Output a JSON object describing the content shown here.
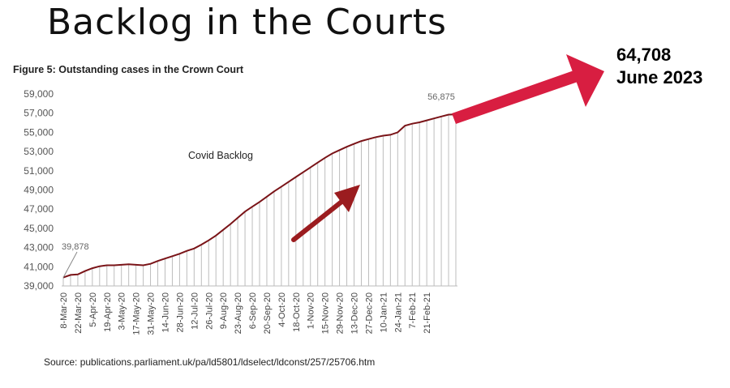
{
  "headline": "Backlog in the Courts",
  "callout": {
    "value": "64,708",
    "date": "June 2023"
  },
  "colors": {
    "line": "#7a1418",
    "bars": "#bdbdbd",
    "callout_arrow": "#d81e41",
    "inner_arrow": "#9b1c1f"
  },
  "icons": {
    "callout_arrow": "arrow-up-right-icon",
    "inner_arrow": "arrow-up-right-icon"
  },
  "chart_data": {
    "type": "line",
    "title": "Figure 5: Outstanding cases in the Crown Court",
    "annotation": "Covid Backlog",
    "ylim": [
      39000,
      59000
    ],
    "yticks": [
      "39,000",
      "41,000",
      "43,000",
      "45,000",
      "47,000",
      "49,000",
      "51,000",
      "53,000",
      "55,000",
      "57,000",
      "59,000"
    ],
    "xticks": [
      "8-Mar-20",
      "22-Mar-20",
      "5-Apr-20",
      "19-Apr-20",
      "3-May-20",
      "17-May-20",
      "31-May-20",
      "14-Jun-20",
      "28-Jun-20",
      "12-Jul-20",
      "26-Jul-20",
      "9-Aug-20",
      "23-Aug-20",
      "6-Sep-20",
      "20-Sep-20",
      "4-Oct-20",
      "18-Oct-20",
      "1-Nov-20",
      "15-Nov-20",
      "29-Nov-20",
      "13-Dec-20",
      "27-Dec-20",
      "10-Jan-21",
      "24-Jan-21",
      "7-Feb-21",
      "21-Feb-21"
    ],
    "first_label": "39,878",
    "last_label": "56,875",
    "series": [
      {
        "values": [
          39878,
          40150,
          40200,
          40550,
          40850,
          41050,
          41150,
          41150,
          41200,
          41250,
          41200,
          41150,
          41300,
          41600,
          41850,
          42100,
          42350,
          42650,
          42900,
          43300,
          43750,
          44250,
          44850,
          45450,
          46100,
          46750,
          47250,
          47750,
          48300,
          48850,
          49350,
          49850,
          50350,
          50850,
          51350,
          51850,
          52350,
          52800,
          53150,
          53500,
          53800,
          54100,
          54300,
          54500,
          54650,
          54750,
          55000,
          55700,
          55900,
          56050,
          56250,
          56450,
          56650,
          56850,
          56875
        ]
      }
    ]
  },
  "source": "Source: publications.parliament.uk/pa/ld5801/ldselect/ldconst/257/25706.htm"
}
